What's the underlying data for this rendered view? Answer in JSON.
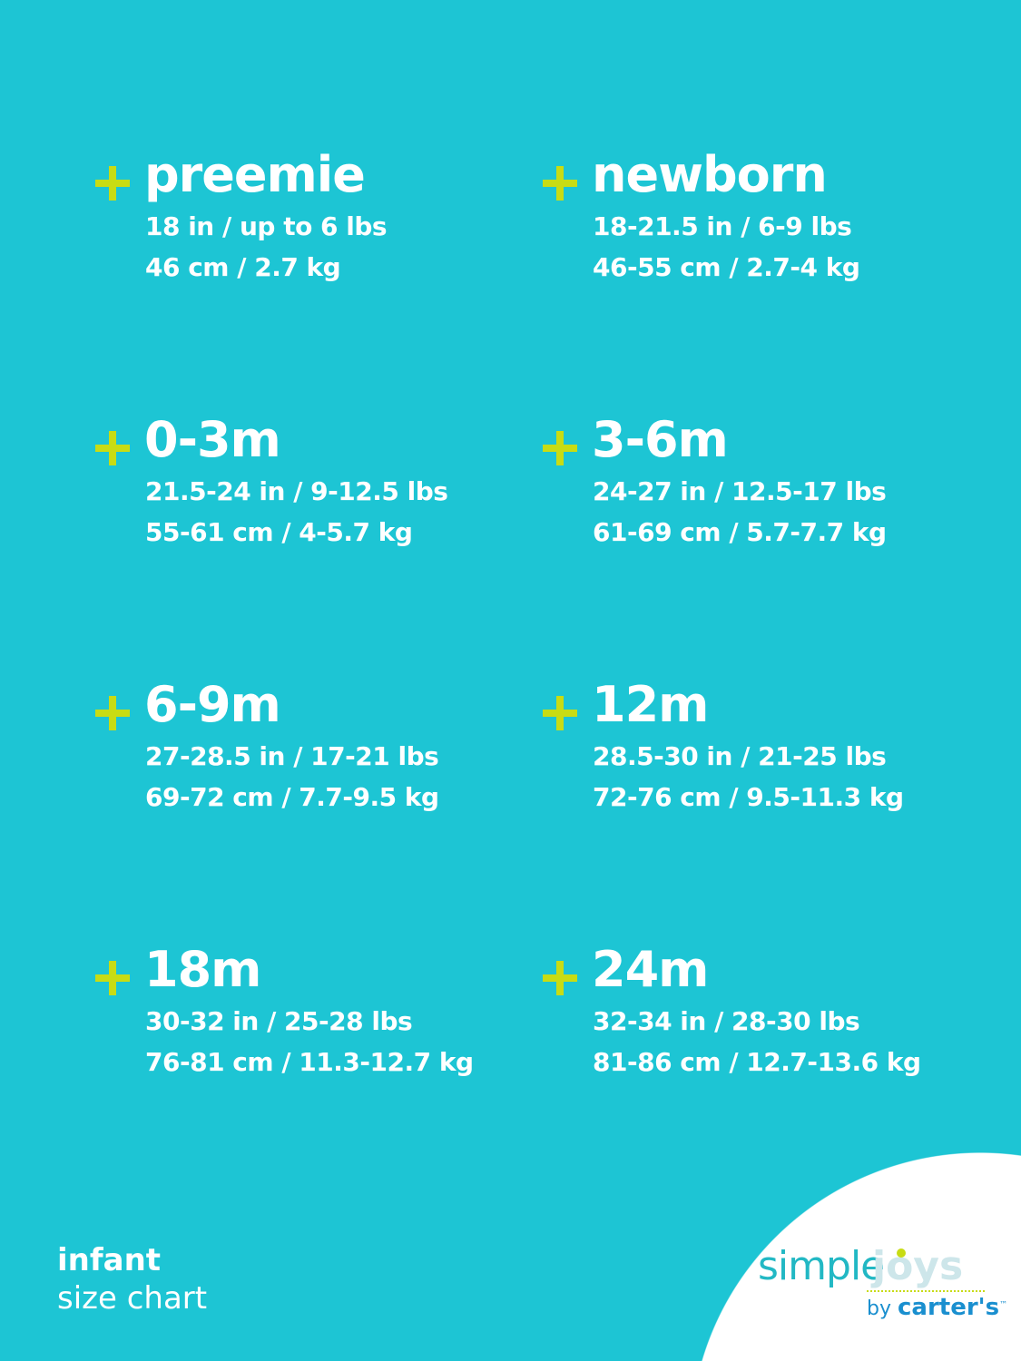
{
  "colors": {
    "background": "#1DC5D4",
    "plus": "#C8DC14",
    "text": "#FFFFFF"
  },
  "sizes": [
    {
      "name": "preemie",
      "imperial": "18 in / up to 6 lbs",
      "metric": "46 cm / 2.7 kg"
    },
    {
      "name": "newborn",
      "imperial": "18-21.5 in / 6-9 lbs",
      "metric": "46-55 cm / 2.7-4 kg"
    },
    {
      "name": "0-3m",
      "imperial": "21.5-24 in / 9-12.5 lbs",
      "metric": "55-61 cm / 4-5.7 kg"
    },
    {
      "name": "3-6m",
      "imperial": "24-27 in / 12.5-17 lbs",
      "metric": "61-69 cm / 5.7-7.7 kg"
    },
    {
      "name": "6-9m",
      "imperial": "27-28.5 in / 17-21 lbs",
      "metric": "69-72 cm / 7.7-9.5 kg"
    },
    {
      "name": "12m",
      "imperial": "28.5-30 in / 21-25 lbs",
      "metric": "72-76 cm / 9.5-11.3 kg"
    },
    {
      "name": "18m",
      "imperial": "30-32 in / 25-28 lbs",
      "metric": "76-81 cm / 11.3-12.7 kg"
    },
    {
      "name": "24m",
      "imperial": "32-34 in / 28-30 lbs",
      "metric": "81-86 cm / 12.7-13.6 kg"
    }
  ],
  "caption": {
    "bold": "infant",
    "regular": "size chart"
  },
  "logo": {
    "simple": "simple",
    "joys": "joys",
    "by": "by",
    "brand": "carter's",
    "tm": "™"
  }
}
